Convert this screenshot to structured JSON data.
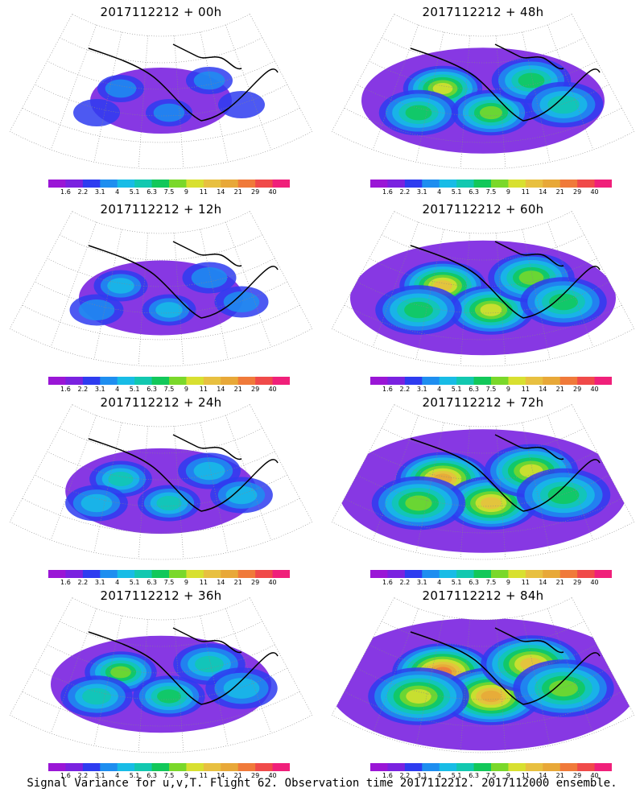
{
  "panels": [
    {
      "title": "2017112212 + 00h",
      "intensity": 0.2
    },
    {
      "title": "2017112212 + 48h",
      "intensity": 0.65
    },
    {
      "title": "2017112212 + 12h",
      "intensity": 0.3
    },
    {
      "title": "2017112212 + 60h",
      "intensity": 0.75
    },
    {
      "title": "2017112212 + 24h",
      "intensity": 0.42
    },
    {
      "title": "2017112212 + 72h",
      "intensity": 0.85
    },
    {
      "title": "2017112212 + 36h",
      "intensity": 0.55
    },
    {
      "title": "2017112212 + 84h",
      "intensity": 0.95
    }
  ],
  "colorbar": {
    "labels": [
      "1.6",
      "2.2",
      "3.1",
      "4",
      "5.1",
      "6.3",
      "7.5",
      "9",
      "11",
      "14",
      "21",
      "29",
      "40"
    ],
    "colors": [
      "#9a16d6",
      "#7a22e0",
      "#2e3cf0",
      "#1e8ef0",
      "#18bce6",
      "#12c8b0",
      "#12c85a",
      "#7ad82a",
      "#d8e030",
      "#e8c040",
      "#e8a838",
      "#f07a3a",
      "#f04a4a",
      "#f0207a"
    ]
  },
  "caption": "Signal Variance for u,v,T. Flight 62. Observation time 2017112212. 2017112000 ensemble."
}
